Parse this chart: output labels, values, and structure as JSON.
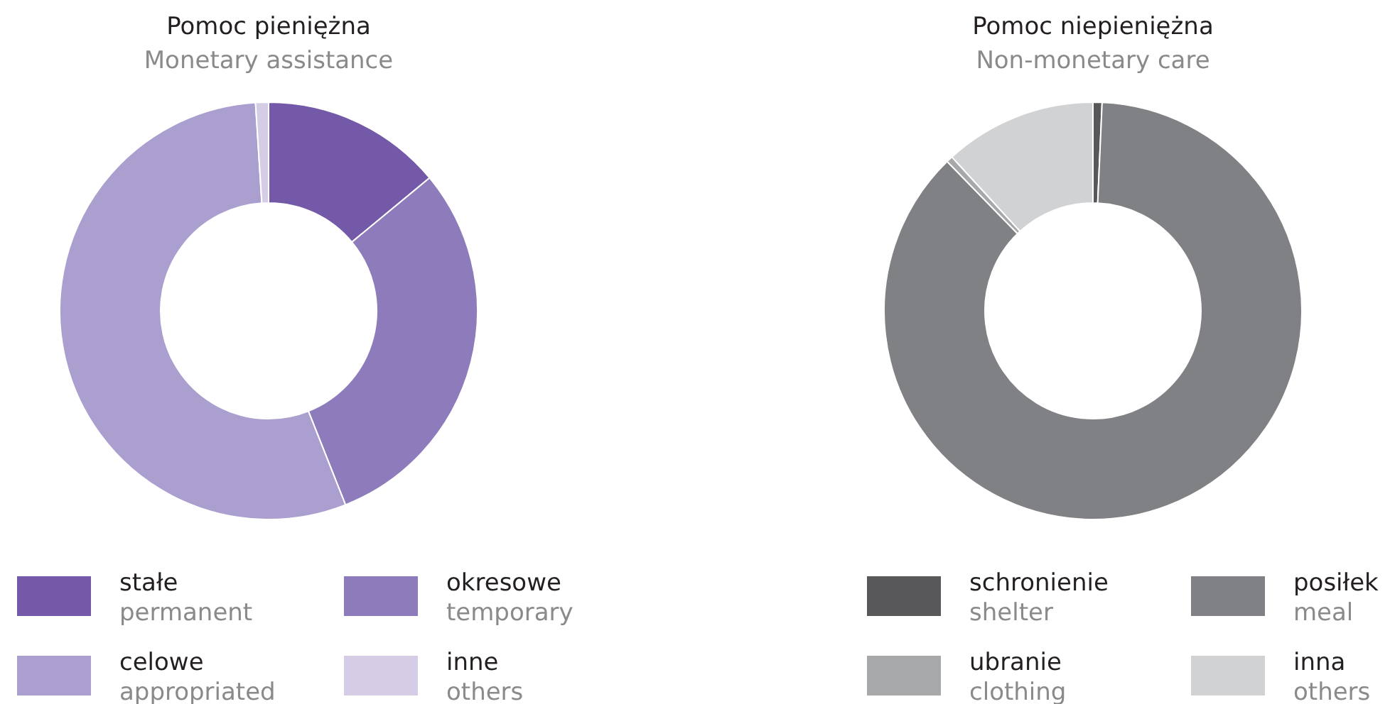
{
  "chart_data": [
    {
      "type": "donut",
      "title": "Pomoc pieniężna",
      "subtitle": "Monetary assistance",
      "categories": [
        "stałe\npermanent",
        "okresowe\ntemporary",
        "celowe\nappropriated",
        "inne\nothers"
      ],
      "values": [
        14,
        30,
        55,
        1
      ],
      "colors": [
        "#7459a8",
        "#8e7bbb",
        "#ab9fcf",
        "#d5cde6"
      ],
      "legend": "bottom"
    },
    {
      "type": "donut",
      "title": "Pomoc niepieniężna",
      "subtitle": "Non-monetary care",
      "categories": [
        "schronienie\nshelter",
        "posiłek\nmeal",
        "ubranie\nclothing",
        "inna\nothers"
      ],
      "values": [
        0.7,
        87,
        0.5,
        11.8
      ],
      "colors": [
        "#58585a",
        "#808184",
        "#a7a8aa",
        "#d1d2d4"
      ],
      "legend": "bottom"
    }
  ]
}
